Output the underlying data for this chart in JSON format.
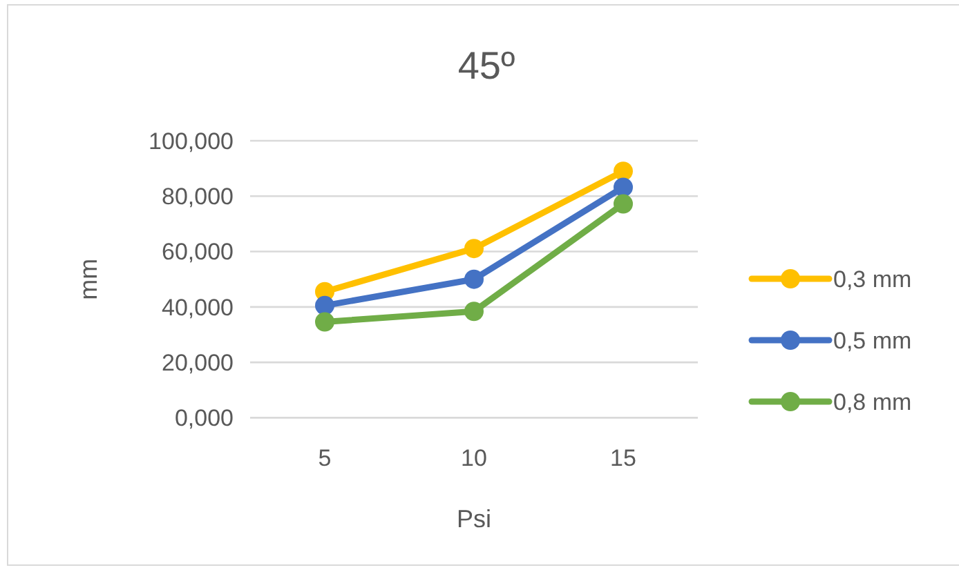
{
  "chart_data": {
    "type": "line",
    "title": "45º",
    "xlabel": "Psi",
    "ylabel": "mm",
    "categories": [
      "5",
      "10",
      "15"
    ],
    "series": [
      {
        "name": "0,3 mm",
        "color": "#ffc000",
        "values": [
          45.5,
          61.1,
          89.0
        ]
      },
      {
        "name": "0,5 mm",
        "color": "#4472c4",
        "values": [
          40.5,
          50.0,
          83.2
        ]
      },
      {
        "name": "0,8 mm",
        "color": "#70ad47",
        "values": [
          34.6,
          38.4,
          77.2
        ]
      }
    ],
    "ylim": [
      0,
      100
    ],
    "yticks": [
      {
        "value": 0,
        "label": "0,000"
      },
      {
        "value": 20,
        "label": "20,000"
      },
      {
        "value": 40,
        "label": "40,000"
      },
      {
        "value": 60,
        "label": "60,000"
      },
      {
        "value": 80,
        "label": "80,000"
      },
      {
        "value": 100,
        "label": "100,000"
      }
    ],
    "grid": "y",
    "legend": "right",
    "marker": "circle",
    "line_style": "solid"
  }
}
